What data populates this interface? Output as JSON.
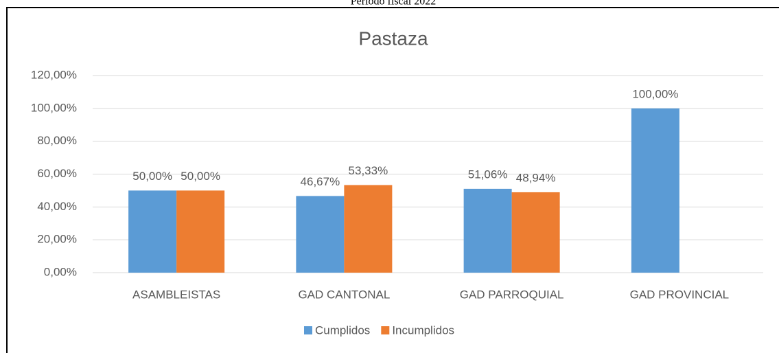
{
  "header": {
    "caption": "Período fiscal 2022"
  },
  "chart_data": {
    "type": "bar",
    "title": "Pastaza",
    "categories": [
      "ASAMBLEISTAS",
      "GAD CANTONAL",
      "GAD PARROQUIAL",
      "GAD PROVINCIAL"
    ],
    "series": [
      {
        "name": "Cumplidos",
        "color": "#5b9bd5",
        "values": [
          50,
          46.67,
          51.06,
          100
        ],
        "value_labels": [
          "50,00%",
          "46,67%",
          "51,06%",
          "100,00%"
        ]
      },
      {
        "name": "Incumplidos",
        "color": "#ed7d31",
        "values": [
          50,
          53.33,
          48.94,
          null
        ],
        "value_labels": [
          "50,00%",
          "53,33%",
          "48,94%",
          null
        ]
      }
    ],
    "ylim": [
      0,
      120
    ],
    "yticks": [
      {
        "value": 0,
        "label": "0,00%"
      },
      {
        "value": 20,
        "label": "20,00%"
      },
      {
        "value": 40,
        "label": "40,00%"
      },
      {
        "value": 60,
        "label": "60,00%"
      },
      {
        "value": 80,
        "label": "80,00%"
      },
      {
        "value": 100,
        "label": "100,00%"
      },
      {
        "value": 120,
        "label": "120,00%"
      }
    ],
    "grid": true,
    "legend": "bottom"
  }
}
